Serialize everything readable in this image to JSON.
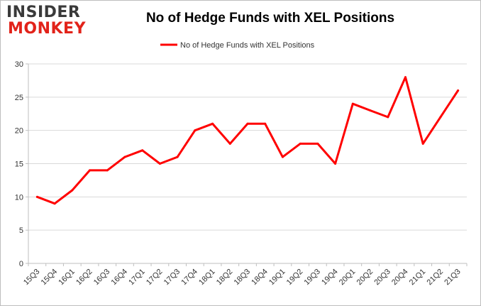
{
  "logo": {
    "line1": "INSIDER",
    "line2": "MONKEY"
  },
  "chart_data": {
    "type": "line",
    "title": "No of Hedge Funds with XEL Positions",
    "xlabel": "",
    "ylabel": "",
    "legend": "top-center",
    "grid": true,
    "ylim": [
      0,
      30
    ],
    "yticks": [
      0,
      5,
      10,
      15,
      20,
      25,
      30
    ],
    "categories": [
      "15Q3",
      "15Q4",
      "16Q1",
      "16Q2",
      "16Q3",
      "16Q4",
      "17Q1",
      "17Q2",
      "17Q3",
      "17Q4",
      "18Q1",
      "18Q2",
      "18Q3",
      "18Q4",
      "19Q1",
      "19Q2",
      "19Q3",
      "19Q4",
      "20Q1",
      "20Q2",
      "20Q3",
      "20Q4",
      "21Q1",
      "21Q2",
      "21Q3"
    ],
    "series": [
      {
        "name": "No of Hedge Funds with XEL Positions",
        "color": "#ff0000",
        "values": [
          10,
          9,
          11,
          14,
          14,
          16,
          17,
          15,
          16,
          20,
          21,
          18,
          21,
          21,
          16,
          18,
          18,
          15,
          24,
          23,
          22,
          28,
          18,
          22,
          26
        ]
      }
    ]
  }
}
